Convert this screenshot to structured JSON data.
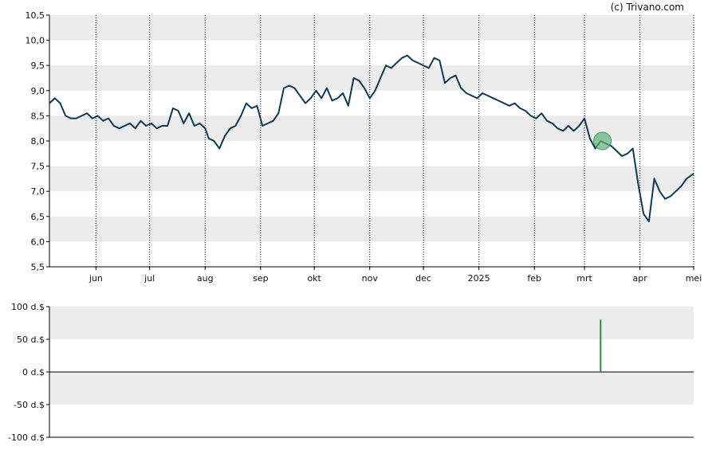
{
  "watermark": "(c) Trivano.com",
  "colors": {
    "band": "#ececec",
    "price_line": "#0f3a57",
    "marker": "#5fb077",
    "volume_bar": "#2e8b3e",
    "axis": "#000000"
  },
  "chart_data": [
    {
      "type": "line",
      "name": "price",
      "title": "",
      "xlabel": "",
      "ylabel": "",
      "ylim": [
        5.5,
        10.5
      ],
      "grid": true,
      "yticks": [
        "10,5",
        "10,0",
        "9,5",
        "9,0",
        "8,5",
        "8,0",
        "7,5",
        "7,0",
        "6,5",
        "6,0",
        "5,5"
      ],
      "ytick_values": [
        10.5,
        10.0,
        9.5,
        9.0,
        8.5,
        8.0,
        7.5,
        7.0,
        6.5,
        6.0,
        5.5
      ],
      "xticks": [
        "jun",
        "jul",
        "aug",
        "sep",
        "okt",
        "nov",
        "dec",
        "2025",
        "feb",
        "mrt",
        "apr",
        "mei"
      ],
      "x_range": [
        "2024-05-06",
        "2025-05-01"
      ],
      "xtick_dates": [
        "2024-06-01",
        "2024-07-01",
        "2024-08-01",
        "2024-09-01",
        "2024-10-01",
        "2024-11-01",
        "2024-12-01",
        "2025-01-01",
        "2025-02-01",
        "2025-03-01",
        "2025-04-01",
        "2025-05-01"
      ],
      "dates": [
        "2024-05-06",
        "2024-05-09",
        "2024-05-12",
        "2024-05-15",
        "2024-05-18",
        "2024-05-21",
        "2024-05-24",
        "2024-05-27",
        "2024-05-30",
        "2024-06-02",
        "2024-06-05",
        "2024-06-08",
        "2024-06-11",
        "2024-06-14",
        "2024-06-17",
        "2024-06-20",
        "2024-06-23",
        "2024-06-26",
        "2024-06-29",
        "2024-07-02",
        "2024-07-05",
        "2024-07-08",
        "2024-07-11",
        "2024-07-14",
        "2024-07-17",
        "2024-07-20",
        "2024-07-23",
        "2024-07-26",
        "2024-07-29",
        "2024-08-01",
        "2024-08-03",
        "2024-08-06",
        "2024-08-09",
        "2024-08-12",
        "2024-08-15",
        "2024-08-18",
        "2024-08-21",
        "2024-08-24",
        "2024-08-27",
        "2024-08-30",
        "2024-09-02",
        "2024-09-05",
        "2024-09-08",
        "2024-09-11",
        "2024-09-14",
        "2024-09-17",
        "2024-09-20",
        "2024-09-23",
        "2024-09-26",
        "2024-09-29",
        "2024-10-02",
        "2024-10-05",
        "2024-10-08",
        "2024-10-11",
        "2024-10-14",
        "2024-10-17",
        "2024-10-20",
        "2024-10-23",
        "2024-10-26",
        "2024-10-29",
        "2024-11-01",
        "2024-11-04",
        "2024-11-07",
        "2024-11-10",
        "2024-11-13",
        "2024-11-16",
        "2024-11-19",
        "2024-11-22",
        "2024-11-25",
        "2024-11-28",
        "2024-12-01",
        "2024-12-04",
        "2024-12-07",
        "2024-12-10",
        "2024-12-13",
        "2024-12-16",
        "2024-12-19",
        "2024-12-22",
        "2024-12-25",
        "2024-12-28",
        "2024-12-31",
        "2025-01-03",
        "2025-01-06",
        "2025-01-09",
        "2025-01-12",
        "2025-01-15",
        "2025-01-18",
        "2025-01-21",
        "2025-01-24",
        "2025-01-27",
        "2025-01-30",
        "2025-02-02",
        "2025-02-05",
        "2025-02-08",
        "2025-02-11",
        "2025-02-14",
        "2025-02-17",
        "2025-02-20",
        "2025-02-23",
        "2025-02-26",
        "2025-03-01",
        "2025-03-04",
        "2025-03-07",
        "2025-03-10",
        "2025-03-13",
        "2025-03-16",
        "2025-03-19",
        "2025-03-22",
        "2025-03-25",
        "2025-03-28",
        "2025-03-31",
        "2025-04-03",
        "2025-04-06",
        "2025-04-09",
        "2025-04-12",
        "2025-04-15",
        "2025-04-18",
        "2025-04-21",
        "2025-04-24",
        "2025-04-27",
        "2025-05-01"
      ],
      "values": [
        8.75,
        8.85,
        8.75,
        8.5,
        8.45,
        8.45,
        8.5,
        8.55,
        8.45,
        8.5,
        8.4,
        8.45,
        8.3,
        8.25,
        8.3,
        8.35,
        8.25,
        8.4,
        8.3,
        8.35,
        8.25,
        8.3,
        8.3,
        8.65,
        8.6,
        8.35,
        8.55,
        8.3,
        8.35,
        8.25,
        8.05,
        8.0,
        7.85,
        8.1,
        8.25,
        8.3,
        8.5,
        8.75,
        8.65,
        8.7,
        8.3,
        8.35,
        8.4,
        8.55,
        9.05,
        9.1,
        9.05,
        8.9,
        8.75,
        8.85,
        9.0,
        8.85,
        9.05,
        8.8,
        8.85,
        8.95,
        8.7,
        9.25,
        9.2,
        9.05,
        8.85,
        9.0,
        9.25,
        9.5,
        9.45,
        9.55,
        9.65,
        9.7,
        9.6,
        9.55,
        9.5,
        9.45,
        9.65,
        9.6,
        9.15,
        9.25,
        9.3,
        9.05,
        8.95,
        8.9,
        8.85,
        8.95,
        8.9,
        8.85,
        8.8,
        8.75,
        8.7,
        8.75,
        8.65,
        8.6,
        8.5,
        8.45,
        8.55,
        8.4,
        8.35,
        8.25,
        8.2,
        8.3,
        8.2,
        8.3,
        8.45,
        8.05,
        7.85,
        8.0,
        7.95,
        7.9,
        7.8,
        7.7,
        7.75,
        7.85,
        7.15,
        6.55,
        6.4,
        7.25,
        7.0,
        6.85,
        6.9,
        7.0,
        7.1,
        7.25,
        7.35
      ]
    },
    {
      "type": "bar",
      "name": "volume",
      "title": "",
      "xlabel": "",
      "ylabel": "",
      "ylim": [
        -100,
        100
      ],
      "grid": true,
      "yticks": [
        "100 d.$",
        "50 d.$",
        "0 d.$",
        "-50 d.$",
        "-100 d.$"
      ],
      "ytick_values": [
        100,
        50,
        0,
        -50,
        -100
      ],
      "dates": [
        "2025-03-10"
      ],
      "values": [
        80
      ]
    }
  ],
  "marker": {
    "date": "2025-03-11",
    "value": 8.0
  }
}
